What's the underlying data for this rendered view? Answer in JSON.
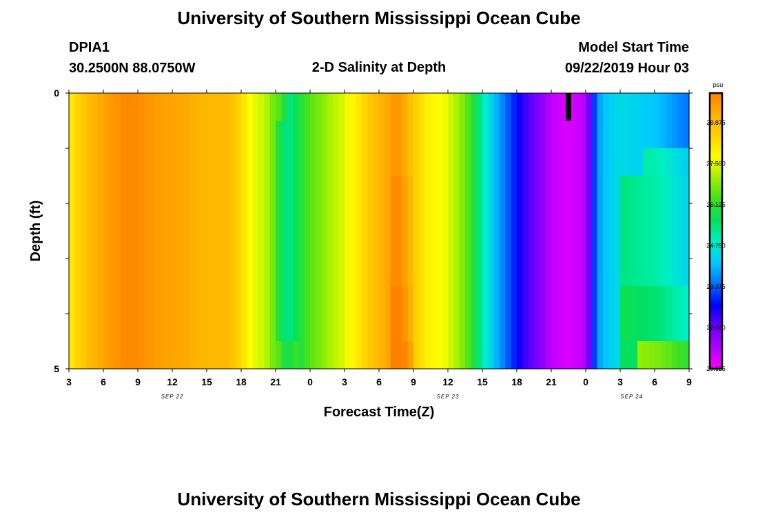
{
  "page": {
    "title": "University of Southern Mississippi Ocean Cube",
    "footer_title": "University of Southern Mississippi Ocean Cube",
    "station": "DPIA1",
    "location": "30.2500N 88.0750W",
    "subtitle": "2-D Salinity at Depth",
    "model_label": "Model Start Time",
    "model_time": "09/22/2019 Hour 03"
  },
  "chart_data": {
    "type": "heatmap",
    "title": "2-D Salinity at Depth",
    "xlabel": "Forecast Time(Z)",
    "ylabel": "Depth (ft)",
    "x_tick_labels": [
      "3",
      "6",
      "9",
      "12",
      "15",
      "18",
      "21",
      "0",
      "3",
      "6",
      "9",
      "12",
      "15",
      "18",
      "21",
      "0",
      "3",
      "6",
      "9"
    ],
    "x_hours_range": [
      3,
      57
    ],
    "date_labels": [
      {
        "label": "SEP 22",
        "hour": 12
      },
      {
        "label": "SEP 23",
        "hour": 36
      },
      {
        "label": "SEP 24",
        "hour": 52
      }
    ],
    "y_tick_labels": [
      "0",
      "5"
    ],
    "ylim": [
      0,
      5
    ],
    "y_bands": 5,
    "colorbar": {
      "unit": "psu",
      "min": 20.625,
      "max": 29.875,
      "tick_labels": [
        "28.875",
        "27.500",
        "26.125",
        "24.750",
        "23.375",
        "22.000",
        "20.625"
      ],
      "colors": [
        "#ff00ff",
        "#b000ff",
        "#6a00ff",
        "#0000ff",
        "#0070ff",
        "#00c8ff",
        "#00f0c0",
        "#00e060",
        "#40e020",
        "#a0f000",
        "#ffff00",
        "#ffd000",
        "#ffb000",
        "#ff8000"
      ]
    },
    "base_profile": [
      [
        3,
        28.0
      ],
      [
        4,
        28.5
      ],
      [
        5,
        29.0
      ],
      [
        6,
        29.3
      ],
      [
        7,
        29.6
      ],
      [
        8,
        29.75
      ],
      [
        9,
        29.7
      ],
      [
        10,
        29.55
      ],
      [
        11,
        29.4
      ],
      [
        12,
        29.35
      ],
      [
        13,
        29.3
      ],
      [
        14,
        29.1
      ],
      [
        15,
        28.95
      ],
      [
        16,
        28.95
      ],
      [
        17,
        28.9
      ],
      [
        18,
        28.3
      ],
      [
        19,
        27.6
      ],
      [
        20,
        27.3
      ],
      [
        20.5,
        27.0
      ],
      [
        21,
        26.4
      ],
      [
        21.5,
        25.6
      ],
      [
        22,
        25.3
      ],
      [
        22.5,
        25.5
      ],
      [
        23,
        25.9
      ],
      [
        24,
        26.5
      ],
      [
        25,
        26.8
      ],
      [
        26,
        27.2
      ],
      [
        27,
        27.5
      ],
      [
        28,
        28.0
      ],
      [
        29,
        28.5
      ],
      [
        30,
        29.0
      ],
      [
        31,
        29.4
      ],
      [
        31.5,
        29.6
      ],
      [
        32,
        29.4
      ],
      [
        33,
        28.6
      ],
      [
        34,
        28.0
      ],
      [
        35,
        27.8
      ],
      [
        36,
        27.5
      ],
      [
        37,
        27.0
      ],
      [
        38,
        26.3
      ],
      [
        39,
        25.0
      ],
      [
        40,
        24.2
      ],
      [
        41,
        23.5
      ],
      [
        42,
        22.8
      ],
      [
        43,
        22.2
      ],
      [
        44,
        21.8
      ],
      [
        45,
        21.2
      ],
      [
        46,
        21.0
      ],
      [
        47,
        21.0
      ],
      [
        48,
        21.3
      ],
      [
        48.5,
        22.5
      ],
      [
        49,
        23.8
      ],
      [
        50,
        24.3
      ],
      [
        51,
        24.5
      ],
      [
        52,
        24.4
      ],
      [
        53,
        24.3
      ],
      [
        54,
        24.2
      ],
      [
        55,
        24.0
      ],
      [
        56,
        23.7
      ],
      [
        57,
        23.5
      ]
    ],
    "depth_adjustments": [
      {
        "band": 0,
        "hour_range": [
          20.7,
          22
        ],
        "delta": 0.5
      },
      {
        "band": 2,
        "hour_range": [
          53,
          57
        ],
        "delta": 0.8
      },
      {
        "band": 3,
        "hour_range": [
          51,
          57
        ],
        "delta": 0.9
      },
      {
        "band": 3,
        "hour_range": [
          31,
          32.8
        ],
        "delta": 0.2
      },
      {
        "band": 4,
        "hour_range": [
          51,
          57
        ],
        "delta": 1.3
      },
      {
        "band": 4,
        "hour_range": [
          31,
          32.8
        ],
        "delta": 0.35
      },
      {
        "band": 5,
        "hour_range": [
          51,
          52.5
        ],
        "delta": 1.2
      },
      {
        "band": 5,
        "hour_range": [
          52.5,
          57
        ],
        "delta": 2.6
      },
      {
        "band": 5,
        "hour_range": [
          31,
          32.8
        ],
        "delta": 0.6
      },
      {
        "band": 5,
        "hour_range": [
          21,
          23
        ],
        "delta": 0.5
      }
    ],
    "marker": {
      "hour": 46.5,
      "depth": [
        0,
        0.5
      ],
      "color": "#000000"
    }
  }
}
